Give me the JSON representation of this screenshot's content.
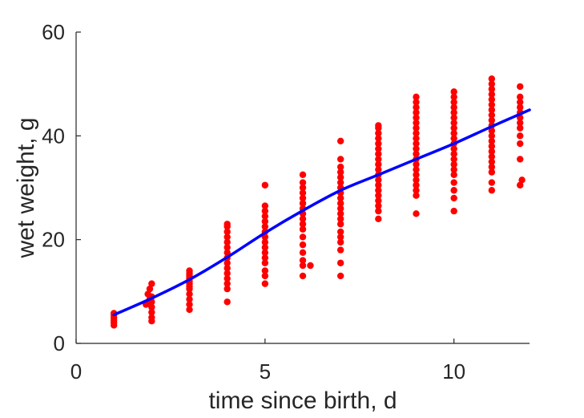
{
  "chart_data": {
    "type": "scatter",
    "xlabel": "time since birth, d",
    "ylabel": "wet weight, g",
    "xlim": [
      0,
      12
    ],
    "ylim": [
      0,
      60
    ],
    "xticks": [
      0,
      5,
      10
    ],
    "yticks": [
      0,
      20,
      40,
      60
    ],
    "grid": false,
    "box": "open-left-bottom",
    "colors": {
      "points": "#ff0000",
      "curve": "#0000ff",
      "axis": "#262626"
    },
    "series": [
      {
        "kind": "points",
        "data": [
          [
            1,
            3.5
          ],
          [
            1,
            4.0
          ],
          [
            1,
            4.5
          ],
          [
            1,
            5.0
          ],
          [
            1,
            5.5
          ],
          [
            1,
            5.8
          ],
          [
            1.85,
            7.5
          ],
          [
            1.9,
            9.5
          ],
          [
            1.95,
            8.5
          ],
          [
            1.95,
            10.5
          ],
          [
            2,
            4.3
          ],
          [
            2,
            5.0
          ],
          [
            2,
            6.0
          ],
          [
            2,
            7.0
          ],
          [
            2,
            8.0
          ],
          [
            2,
            9.0
          ],
          [
            2,
            11.5
          ],
          [
            3,
            6.5
          ],
          [
            3,
            7.5
          ],
          [
            3,
            8.5
          ],
          [
            3,
            9.5
          ],
          [
            3,
            10.5
          ],
          [
            3,
            11.0
          ],
          [
            3,
            11.5
          ],
          [
            3,
            12.0
          ],
          [
            3,
            12.5
          ],
          [
            3,
            13.0
          ],
          [
            3,
            13.5
          ],
          [
            3,
            14.0
          ],
          [
            4,
            8.0
          ],
          [
            4,
            10.5
          ],
          [
            4,
            11.5
          ],
          [
            4,
            12.5
          ],
          [
            4,
            13.5
          ],
          [
            4,
            14.5
          ],
          [
            4,
            15.5
          ],
          [
            4,
            16.5
          ],
          [
            4,
            17.5
          ],
          [
            4,
            18.5
          ],
          [
            4,
            19.5
          ],
          [
            4,
            20.5
          ],
          [
            4,
            21.5
          ],
          [
            4,
            22.5
          ],
          [
            4,
            23.0
          ],
          [
            5,
            11.5
          ],
          [
            5,
            13.0
          ],
          [
            5,
            14.0
          ],
          [
            5,
            15.5
          ],
          [
            5,
            16.5
          ],
          [
            5,
            17.5
          ],
          [
            5,
            18.5
          ],
          [
            5,
            19.5
          ],
          [
            5,
            20.5
          ],
          [
            5,
            21.5
          ],
          [
            5,
            22.5
          ],
          [
            5,
            23.5
          ],
          [
            5,
            24.5
          ],
          [
            5,
            25.5
          ],
          [
            5,
            26.5
          ],
          [
            5,
            30.5
          ],
          [
            6,
            13.0
          ],
          [
            6,
            15.0
          ],
          [
            6,
            16.0
          ],
          [
            6,
            17.5
          ],
          [
            6,
            19.0
          ],
          [
            6,
            20.5
          ],
          [
            6,
            22.0
          ],
          [
            6,
            23.0
          ],
          [
            6,
            24.0
          ],
          [
            6,
            25.0
          ],
          [
            6,
            26.0
          ],
          [
            6,
            27.0
          ],
          [
            6,
            28.0
          ],
          [
            6,
            29.0
          ],
          [
            6,
            30.0
          ],
          [
            6,
            31.0
          ],
          [
            6,
            32.5
          ],
          [
            6.2,
            15.0
          ],
          [
            7,
            13.0
          ],
          [
            7,
            15.5
          ],
          [
            7,
            18.0
          ],
          [
            7,
            19.5
          ],
          [
            7,
            20.5
          ],
          [
            7,
            21.5
          ],
          [
            7,
            23.0
          ],
          [
            7,
            24.0
          ],
          [
            7,
            25.0
          ],
          [
            7,
            26.0
          ],
          [
            7,
            27.0
          ],
          [
            7,
            28.0
          ],
          [
            7,
            29.0
          ],
          [
            7,
            30.0
          ],
          [
            7,
            31.0
          ],
          [
            7,
            32.0
          ],
          [
            7,
            33.0
          ],
          [
            7,
            34.0
          ],
          [
            7,
            35.5
          ],
          [
            7,
            39.0
          ],
          [
            8,
            24.0
          ],
          [
            8,
            25.5
          ],
          [
            8,
            26.5
          ],
          [
            8,
            27.5
          ],
          [
            8,
            28.5
          ],
          [
            8,
            29.5
          ],
          [
            8,
            30.5
          ],
          [
            8,
            31.5
          ],
          [
            8,
            32.5
          ],
          [
            8,
            33.5
          ],
          [
            8,
            34.5
          ],
          [
            8,
            35.5
          ],
          [
            8,
            36.5
          ],
          [
            8,
            37.5
          ],
          [
            8,
            38.5
          ],
          [
            8,
            39.5
          ],
          [
            8,
            40.5
          ],
          [
            8,
            41.5
          ],
          [
            8,
            42.0
          ],
          [
            9,
            25.0
          ],
          [
            9,
            28.5
          ],
          [
            9,
            29.5
          ],
          [
            9,
            30.5
          ],
          [
            9,
            31.5
          ],
          [
            9,
            32.5
          ],
          [
            9,
            33.5
          ],
          [
            9,
            34.5
          ],
          [
            9,
            35.5
          ],
          [
            9,
            36.5
          ],
          [
            9,
            37.5
          ],
          [
            9,
            38.5
          ],
          [
            9,
            39.5
          ],
          [
            9,
            40.5
          ],
          [
            9,
            41.5
          ],
          [
            9,
            42.5
          ],
          [
            9,
            43.5
          ],
          [
            9,
            44.5
          ],
          [
            9,
            45.5
          ],
          [
            9,
            46.5
          ],
          [
            9,
            47.5
          ],
          [
            10,
            25.5
          ],
          [
            10,
            28.0
          ],
          [
            10,
            29.5
          ],
          [
            10,
            31.0
          ],
          [
            10,
            32.5
          ],
          [
            10,
            33.5
          ],
          [
            10,
            34.5
          ],
          [
            10,
            35.5
          ],
          [
            10,
            36.5
          ],
          [
            10,
            37.5
          ],
          [
            10,
            38.5
          ],
          [
            10,
            39.5
          ],
          [
            10,
            40.5
          ],
          [
            10,
            41.5
          ],
          [
            10,
            42.5
          ],
          [
            10,
            43.5
          ],
          [
            10,
            44.5
          ],
          [
            10,
            45.5
          ],
          [
            10,
            46.5
          ],
          [
            10,
            47.5
          ],
          [
            10,
            48.5
          ],
          [
            11,
            29.5
          ],
          [
            11,
            31.0
          ],
          [
            11,
            33.0
          ],
          [
            11,
            34.0
          ],
          [
            11,
            35.0
          ],
          [
            11,
            36.0
          ],
          [
            11,
            37.0
          ],
          [
            11,
            38.0
          ],
          [
            11,
            39.0
          ],
          [
            11,
            40.0
          ],
          [
            11,
            41.0
          ],
          [
            11,
            42.0
          ],
          [
            11,
            43.0
          ],
          [
            11,
            44.0
          ],
          [
            11,
            45.0
          ],
          [
            11,
            46.0
          ],
          [
            11,
            47.0
          ],
          [
            11,
            48.0
          ],
          [
            11,
            49.0
          ],
          [
            11,
            50.0
          ],
          [
            11,
            51.0
          ],
          [
            11.75,
            30.5
          ],
          [
            11.8,
            31.5
          ],
          [
            11.75,
            35.5
          ],
          [
            11.75,
            38.5
          ],
          [
            11.75,
            40.0
          ],
          [
            11.75,
            41.5
          ],
          [
            11.75,
            42.5
          ],
          [
            11.75,
            43.5
          ],
          [
            11.75,
            44.5
          ],
          [
            11.75,
            45.5
          ],
          [
            11.75,
            46.5
          ],
          [
            11.75,
            47.5
          ],
          [
            11.75,
            49.5
          ]
        ]
      },
      {
        "kind": "line",
        "x": [
          1,
          2,
          3,
          4,
          5,
          6,
          7,
          8,
          9,
          10,
          11,
          12
        ],
        "y": [
          5.5,
          8.7,
          12.3,
          16.6,
          21.3,
          25.6,
          29.5,
          32.5,
          35.5,
          38.5,
          41.8,
          45.0
        ]
      }
    ]
  }
}
